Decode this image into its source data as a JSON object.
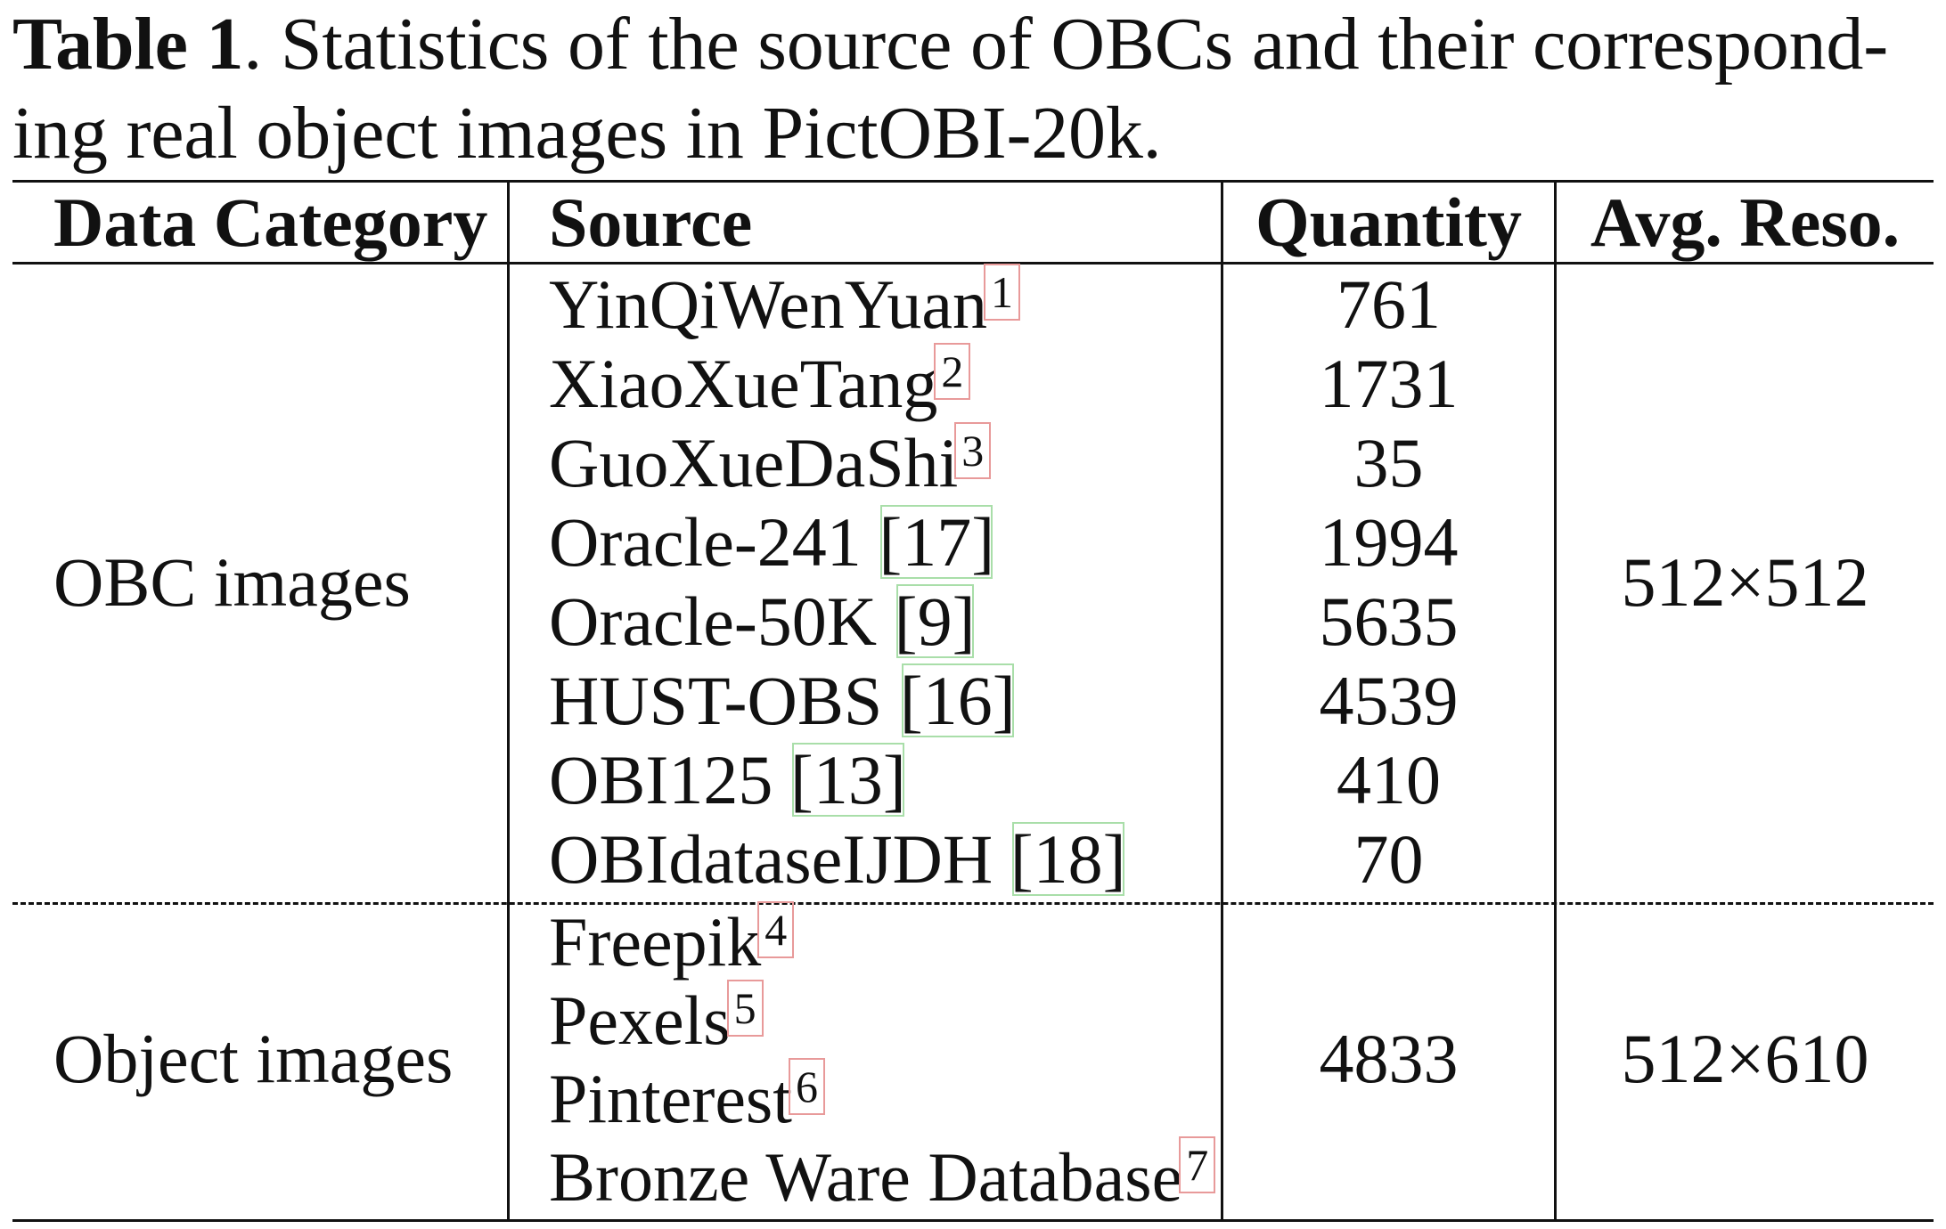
{
  "caption": {
    "label": "Table 1",
    "line1": ". Statistics of the source of OBCs and their correspond-",
    "line2": "ing real object images in PictOBI-20k."
  },
  "table": {
    "headers": [
      "Data Category",
      "Source",
      "Quantity",
      "Avg. Reso."
    ],
    "groups": [
      {
        "category": "OBC images",
        "resolution": "512×512",
        "rows": [
          {
            "source": "YinQiWenYuan",
            "footnote": "1",
            "cite": "",
            "quantity": "761"
          },
          {
            "source": "XiaoXueTang",
            "footnote": "2",
            "cite": "",
            "quantity": "1731"
          },
          {
            "source": "GuoXueDaShi",
            "footnote": "3",
            "cite": "",
            "quantity": "35"
          },
          {
            "source": "Oracle-241 ",
            "footnote": "",
            "cite": "[17]",
            "quantity": "1994"
          },
          {
            "source": "Oracle-50K ",
            "footnote": "",
            "cite": "[9]",
            "quantity": "5635"
          },
          {
            "source": "HUST-OBS ",
            "footnote": "",
            "cite": "[16]",
            "quantity": "4539"
          },
          {
            "source": "OBI125 ",
            "footnote": "",
            "cite": "[13]",
            "quantity": "410"
          },
          {
            "source": "OBIdataseIJDH ",
            "footnote": "",
            "cite": "[18]",
            "quantity": "70"
          }
        ]
      },
      {
        "category": "Object images",
        "resolution": "512×610",
        "quantity": "4833",
        "rows": [
          {
            "source": "Freepik",
            "footnote": "4"
          },
          {
            "source": "Pexels",
            "footnote": "5"
          },
          {
            "source": "Pinterest",
            "footnote": "6"
          },
          {
            "source": "Bronze Ware Database",
            "footnote": "7"
          }
        ]
      }
    ]
  }
}
